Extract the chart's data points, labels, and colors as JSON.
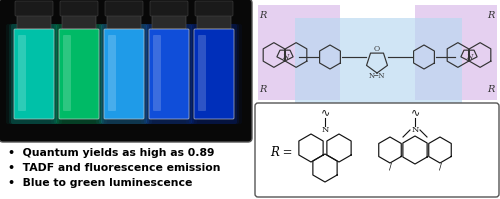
{
  "fig_width": 5.0,
  "fig_height": 1.99,
  "dpi": 100,
  "bg_color": "#ffffff",
  "bullet_points": [
    "Quantum yields as high as 0.89",
    "TADF and fluorescence emission",
    "Blue to green luminescence"
  ],
  "vial_colors": [
    "#00d4b8",
    "#00cc70",
    "#22aaff",
    "#1155ee",
    "#0033cc"
  ],
  "photo_bg": "#080808",
  "blue_highlight": "#b8d8f0",
  "purple_highlight": "#d8b8e8"
}
